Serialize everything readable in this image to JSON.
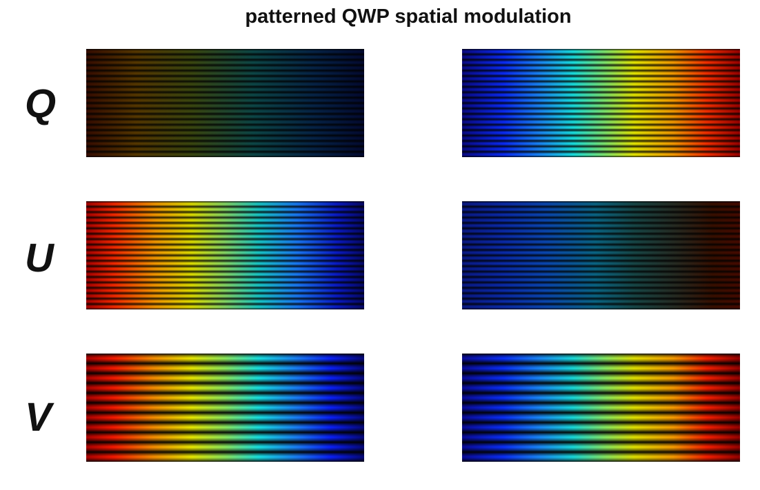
{
  "title": "patterned QWP spatial modulation",
  "rows": [
    {
      "label": "Q"
    },
    {
      "label": "U"
    },
    {
      "label": "V"
    }
  ]
}
